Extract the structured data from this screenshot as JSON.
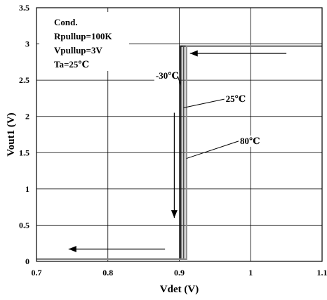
{
  "chart_data": {
    "type": "line",
    "xlabel": "Vdet (V)",
    "ylabel": "Vout1 (V)",
    "xlim": [
      0.7,
      1.1
    ],
    "ylim": [
      0,
      3.5
    ],
    "xticks": [
      0.7,
      0.8,
      0.9,
      1.0,
      1.1
    ],
    "xtick_labels": [
      "0.7",
      "0.8",
      "0.9",
      "1",
      "1.1"
    ],
    "yticks": [
      0,
      0.5,
      1,
      1.5,
      2,
      2.5,
      3,
      3.5
    ],
    "ytick_labels": [
      "0",
      "0.5",
      "1",
      "1.5",
      "2",
      "2.5",
      "3",
      "3.5"
    ],
    "grid": true,
    "conditions": [
      "Cond.",
      "Rpullup=100K",
      "Vpullup=3V",
      "Ta=25℃"
    ],
    "series": [
      {
        "name": "-30℃",
        "color": "#1a1a1a",
        "x": [
          0.7,
          0.902,
          0.902,
          1.1
        ],
        "y": [
          0.03,
          0.03,
          2.97,
          2.97
        ]
      },
      {
        "name": "25℃",
        "color": "#4d4d4d",
        "x": [
          0.7,
          0.906,
          0.906,
          1.1
        ],
        "y": [
          0.03,
          0.03,
          2.97,
          2.97
        ]
      },
      {
        "name": "80℃",
        "color": "#8c8c8c",
        "x": [
          0.7,
          0.91,
          0.91,
          1.1
        ],
        "y": [
          0.03,
          0.03,
          2.97,
          2.97
        ]
      }
    ],
    "series_labels": [
      {
        "text": "-30℃",
        "x": 0.867,
        "y": 2.52,
        "anchor_x": 0.902,
        "anchor_y": 2.43
      },
      {
        "text": "25℃",
        "x": 0.965,
        "y": 2.2,
        "anchor_x": 0.906,
        "anchor_y": 2.12
      },
      {
        "text": "80℃",
        "x": 0.985,
        "y": 1.62,
        "anchor_x": 0.91,
        "anchor_y": 1.42
      }
    ],
    "arrows": [
      {
        "direction": "left",
        "x1": 1.05,
        "y1": 2.87,
        "x2": 0.915,
        "y2": 2.87
      },
      {
        "direction": "down",
        "x1": 0.893,
        "y1": 2.05,
        "x2": 0.893,
        "y2": 0.6
      },
      {
        "direction": "left",
        "x1": 0.88,
        "y1": 0.17,
        "x2": 0.745,
        "y2": 0.17
      }
    ]
  }
}
